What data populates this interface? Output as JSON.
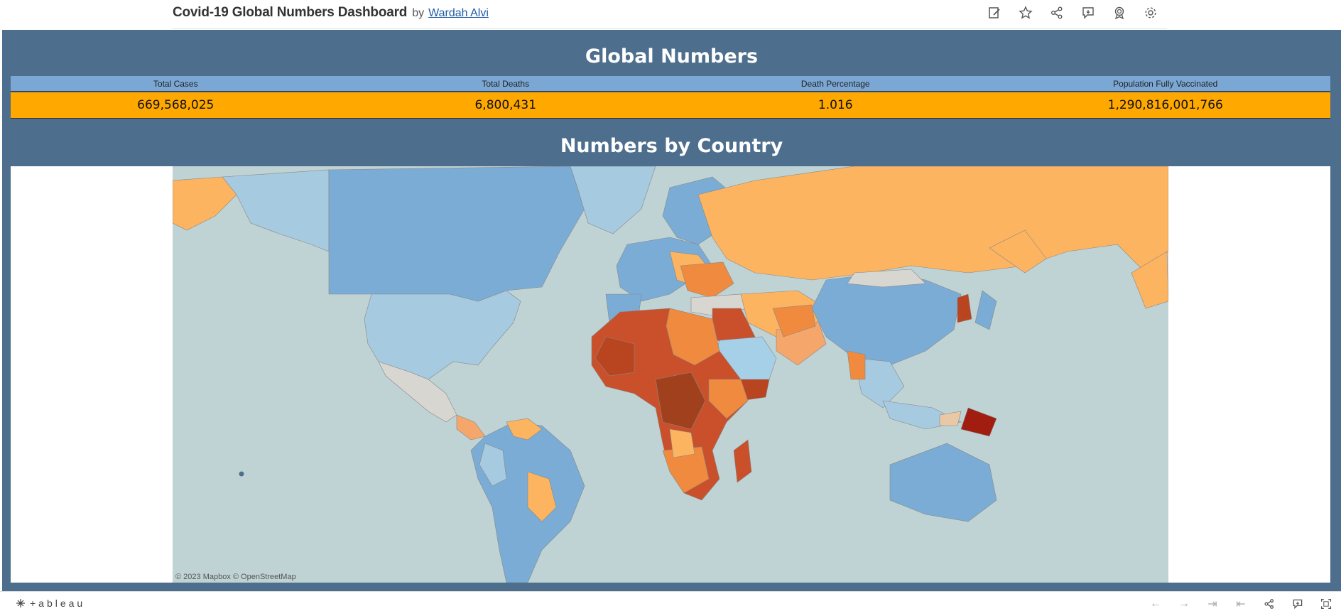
{
  "header": {
    "title": "Covid-19 Global Numbers Dashboard",
    "by": "by",
    "author": "Wardah Alvi",
    "tools": [
      "edit-icon",
      "star-icon",
      "share-icon",
      "comment-icon",
      "badge-icon",
      "gear-icon"
    ]
  },
  "dashboard": {
    "global_title": "Global Numbers",
    "metrics": {
      "headers": [
        "Total Cases",
        "Total Deaths",
        "Death Percentage",
        "Population Fully Vaccinated"
      ],
      "values": [
        "669,568,025",
        "6,800,431",
        "1.016",
        "1,290,816,001,766"
      ]
    },
    "country_title": "Numbers by Country",
    "map_attribution": "© 2023 Mapbox  © OpenStreetMap"
  },
  "colors": {
    "dashboard_bg": "#4d6e8d",
    "header_row": "#7aa7d3",
    "value_row": "#ffa800",
    "ocean": "#c0d3d4"
  },
  "footer": {
    "logo_text": "+ableau"
  }
}
